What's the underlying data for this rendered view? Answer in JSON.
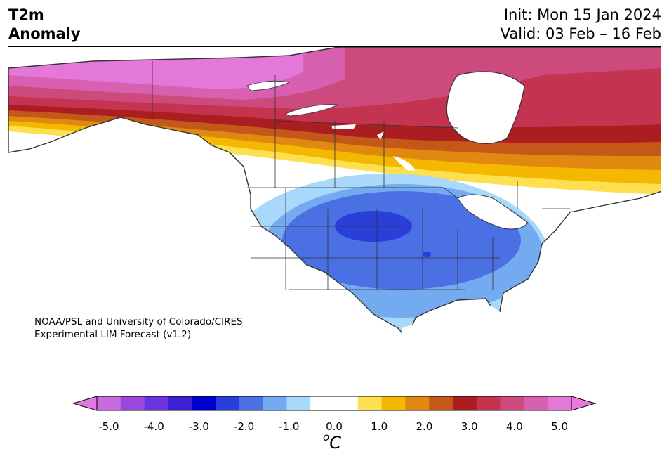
{
  "header": {
    "title_line1": "T2m",
    "title_line2": "Anomaly",
    "init": "Init: Mon 15 Jan 2024",
    "valid": "Valid: 03 Feb – 16 Feb"
  },
  "credit": {
    "line1": "NOAA/PSL and University of Colorado/CIRES",
    "line2": "Experimental LIM Forecast (v1.2)"
  },
  "colorbar": {
    "unit_base": "C",
    "unit_sup": "o",
    "ticks": [
      "-5.0",
      "-4.0",
      "-3.0",
      "-2.0",
      "-1.0",
      "0.0",
      "1.0",
      "2.0",
      "3.0",
      "4.0",
      "5.0"
    ],
    "under_color": "#e07ae0",
    "over_color": "#e87ad8",
    "colors": [
      "#c86ae0",
      "#9a48dc",
      "#6a34dc",
      "#3c20d4",
      "#0000cc",
      "#2a3ed8",
      "#4a70e4",
      "#74aaf0",
      "#a8d8fa",
      "#ffffff",
      "#ffffff",
      "#fce050",
      "#f4b800",
      "#e08810",
      "#c45818",
      "#aa1e22",
      "#c43450",
      "#cc4a7c",
      "#d860b0",
      "#e478d8"
    ]
  },
  "map_colors": {
    "ocean": "#ffffff",
    "coast": "#333333",
    "border": "#333333"
  }
}
